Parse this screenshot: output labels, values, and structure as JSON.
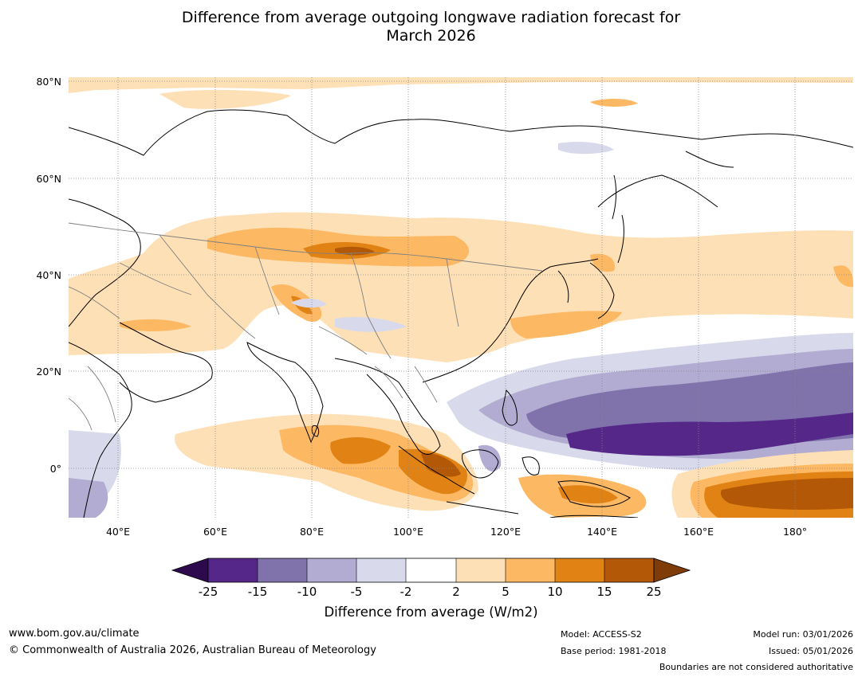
{
  "title": {
    "line1": "Difference from average outgoing longwave radiation forecast for",
    "line2": "March 2026"
  },
  "map": {
    "lat_labels": [
      "80°N",
      "60°N",
      "40°N",
      "20°N",
      "0°"
    ],
    "lon_labels": [
      "40°E",
      "60°E",
      "80°E",
      "100°E",
      "120°E",
      "140°E",
      "160°E",
      "180°"
    ],
    "region": "Asia and western Pacific",
    "extent": {
      "lon_min": 30,
      "lon_max": 192,
      "lat_min": -10,
      "lat_max": 81
    }
  },
  "colorbar": {
    "ticks": [
      "-25",
      "-15",
      "-10",
      "-5",
      "-2",
      "2",
      "5",
      "10",
      "15",
      "25"
    ],
    "colors": [
      "#2d0a4e",
      "#542788",
      "#8073ac",
      "#b2abd2",
      "#d8daeb",
      "#ffffff",
      "#fee0b6",
      "#fdb863",
      "#e08214",
      "#b35806",
      "#7f3b08"
    ],
    "title": "Difference from average (W/m2)"
  },
  "colors": {
    "land_outline": "#000000",
    "border": "#808080",
    "grid": "#888888"
  },
  "footer": {
    "website": "www.bom.gov.au/climate",
    "copyright": "© Commonwealth of Australia 2026, Australian Bureau of Meteorology",
    "model": "Model: ACCESS-S2",
    "base_period": "Base period: 1981-2018",
    "model_run": "Model run: 03/01/2026",
    "issued": "Issued: 05/01/2026",
    "disclaimer": "Boundaries are not considered authoritative"
  }
}
